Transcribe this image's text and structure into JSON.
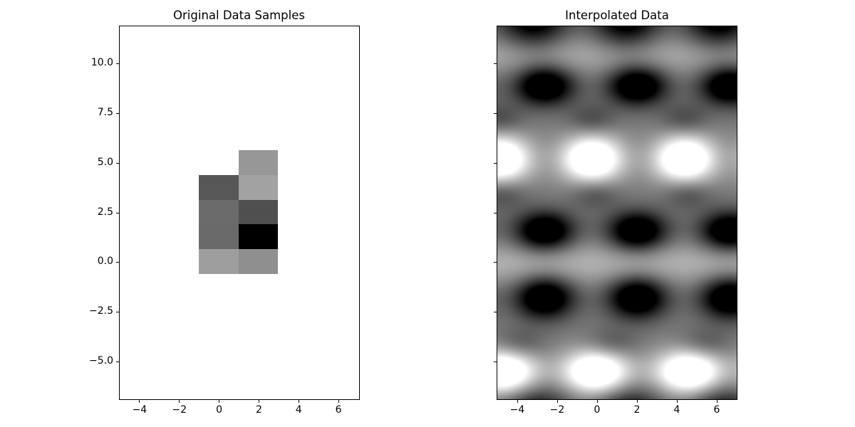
{
  "figure": {
    "background": "#ffffff",
    "text_color": "#000000",
    "spine_color": "#000000"
  },
  "chart_data": [
    {
      "type": "heatmap",
      "title": "Original Data Samples",
      "xlabel": "",
      "ylabel": "",
      "xlim": [
        -5,
        7
      ],
      "ylim": [
        -6.875,
        11.875
      ],
      "grid": false,
      "xticks": [
        -4,
        -2,
        0,
        2,
        4,
        6
      ],
      "xtick_labels": [
        "−4",
        "−2",
        "0",
        "2",
        "4",
        "6"
      ],
      "yticks": [
        10.0,
        7.5,
        5.0,
        2.5,
        0.0,
        -2.5,
        -5.0
      ],
      "ytick_labels": [
        "10.0",
        "7.5",
        "5.0",
        "2.5",
        "0.0",
        "−2.5",
        "−5.0"
      ],
      "colormap": "gray",
      "image_extent": [
        -1,
        3,
        -0.625,
        5.625
      ],
      "n_rows": 5,
      "n_cols": 2,
      "values_top_to_bottom_0_255": [
        [
          null,
          151
        ],
        [
          87,
          162
        ],
        [
          107,
          79
        ],
        [
          105,
          0
        ],
        [
          158,
          143
        ]
      ],
      "cell_colors_top_to_bottom": [
        [
          null,
          "#979797"
        ],
        [
          "#575757",
          "#a2a2a2"
        ],
        [
          "#6b6b6b",
          "#4f4f4f"
        ],
        [
          "#696969",
          "#000000"
        ],
        [
          "#9e9e9e",
          "#8f8f8f"
        ]
      ]
    },
    {
      "type": "heatmap",
      "title": "Interpolated Data",
      "xlabel": "",
      "ylabel": "",
      "xlim": [
        -5,
        7
      ],
      "ylim": [
        -6.875,
        11.875
      ],
      "grid": false,
      "xticks": [
        -4,
        -2,
        0,
        2,
        4,
        6
      ],
      "xtick_labels": [
        "−4",
        "−2",
        "0",
        "2",
        "4",
        "6"
      ],
      "yticks": [
        10.0,
        7.5,
        5.0,
        2.5,
        0.0,
        -2.5,
        -5.0
      ],
      "ytick_labels": [],
      "colormap": "gray",
      "field_model": {
        "comment": "smooth periodic interpolated field: base gray + horizontal light bands + rows of gaussian blobs repeating with x_period; amp>0 bright, amp<0 dark",
        "base_level": 0.48,
        "x_period": 4.65,
        "column_anchors": {
          "d": 2.02,
          "w": -0.25
        },
        "bands": [
          {
            "y": 10.45,
            "sy": 0.8,
            "amp": 0.2
          },
          {
            "y": -0.05,
            "sy": 0.85,
            "amp": 0.22
          }
        ],
        "blob_rows": [
          {
            "y": 12.15,
            "set": "d",
            "xshift": -0.55,
            "sx": 1.2,
            "sy": 1.0,
            "amp": -0.6
          },
          {
            "y": 8.9,
            "set": "d",
            "xshift": 0,
            "sx": 1.05,
            "sy": 0.7,
            "amp": -0.75
          },
          {
            "y": 7.2,
            "set": "w",
            "xshift": 0,
            "sx": 0.85,
            "sy": 0.55,
            "amp": -0.2
          },
          {
            "y": 5.2,
            "set": "w",
            "xshift": 0,
            "sx": 1.1,
            "sy": 0.85,
            "amp": 0.85
          },
          {
            "y": 3.45,
            "set": "w",
            "xshift": 0.15,
            "sx": 0.85,
            "sy": 0.55,
            "amp": -0.2
          },
          {
            "y": 1.55,
            "set": "d",
            "xshift": 0,
            "sx": 1.05,
            "sy": 0.7,
            "amp": -0.75
          },
          {
            "y": -1.75,
            "set": "d",
            "xshift": 0,
            "sx": 1.05,
            "sy": 0.75,
            "amp": -0.75
          },
          {
            "y": -4.1,
            "set": "w",
            "xshift": 1.0,
            "sx": 0.9,
            "sy": 0.55,
            "amp": -0.18
          },
          {
            "y": -5.5,
            "set": "w",
            "xshift": 0.2,
            "sx": 1.2,
            "sy": 0.8,
            "amp": 0.85
          },
          {
            "y": -7.6,
            "set": "d",
            "xshift": -0.4,
            "sx": 1.2,
            "sy": 0.9,
            "amp": -0.5
          }
        ]
      }
    }
  ]
}
